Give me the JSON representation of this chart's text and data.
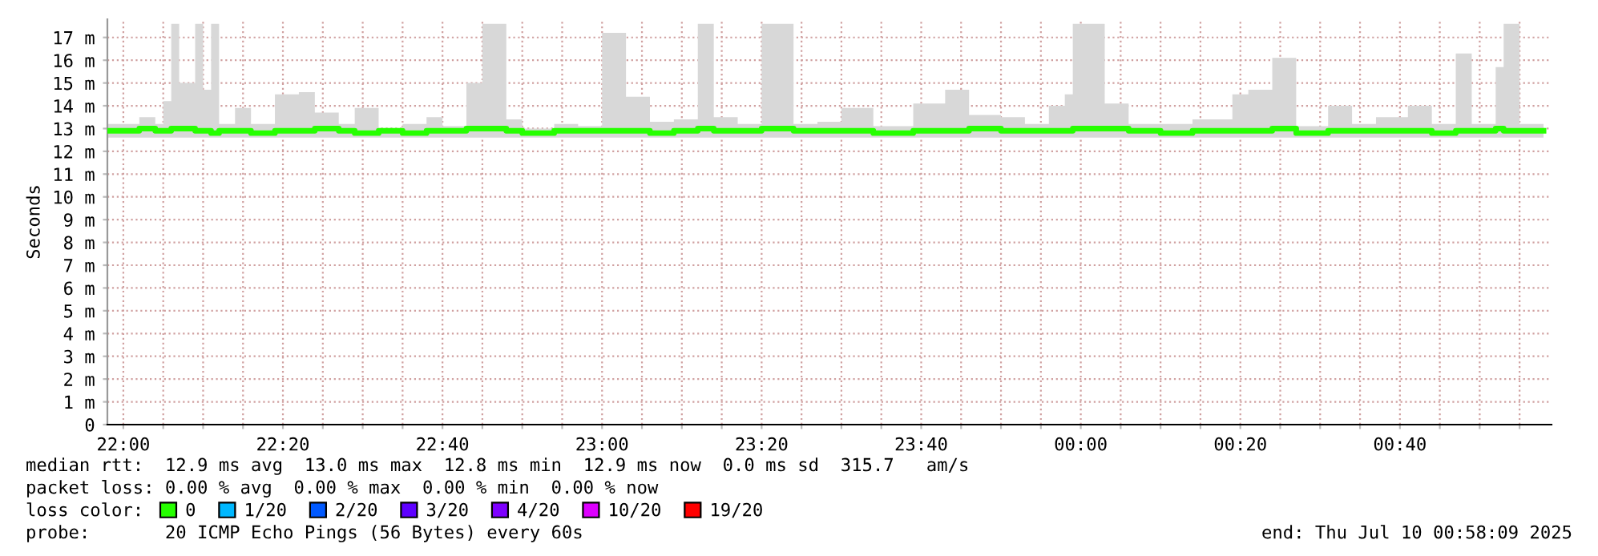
{
  "chart_data": {
    "type": "step",
    "ylabel": "Seconds",
    "x": [
      "2025-07-09T21:58",
      "2025-07-09T22:00",
      "2025-07-09T22:02",
      "2025-07-09T22:04",
      "2025-07-09T22:05",
      "2025-07-09T22:06",
      "2025-07-09T22:07",
      "2025-07-09T22:09",
      "2025-07-09T22:10",
      "2025-07-09T22:11",
      "2025-07-09T22:12",
      "2025-07-09T22:14",
      "2025-07-09T22:16",
      "2025-07-09T22:19",
      "2025-07-09T22:22",
      "2025-07-09T22:24",
      "2025-07-09T22:27",
      "2025-07-09T22:29",
      "2025-07-09T22:32",
      "2025-07-09T22:35",
      "2025-07-09T22:38",
      "2025-07-09T22:40",
      "2025-07-09T22:43",
      "2025-07-09T22:45",
      "2025-07-09T22:48",
      "2025-07-09T22:50",
      "2025-07-09T22:54",
      "2025-07-09T22:57",
      "2025-07-09T23:00",
      "2025-07-09T23:03",
      "2025-07-09T23:06",
      "2025-07-09T23:09",
      "2025-07-09T23:12",
      "2025-07-09T23:14",
      "2025-07-09T23:17",
      "2025-07-09T23:20",
      "2025-07-09T23:24",
      "2025-07-09T23:27",
      "2025-07-09T23:30",
      "2025-07-09T23:34",
      "2025-07-09T23:39",
      "2025-07-09T23:43",
      "2025-07-09T23:46",
      "2025-07-09T23:50",
      "2025-07-09T23:53",
      "2025-07-09T23:56",
      "2025-07-09T23:58",
      "2025-07-09T23:59",
      "2025-07-10T00:03",
      "2025-07-10T00:06",
      "2025-07-10T00:10",
      "2025-07-10T00:14",
      "2025-07-10T00:19",
      "2025-07-10T00:21",
      "2025-07-10T00:24",
      "2025-07-10T00:27",
      "2025-07-10T00:31",
      "2025-07-10T00:34",
      "2025-07-10T00:37",
      "2025-07-10T00:41",
      "2025-07-10T00:44",
      "2025-07-10T00:47",
      "2025-07-10T00:49",
      "2025-07-10T00:52",
      "2025-07-10T00:53",
      "2025-07-10T00:55",
      "2025-07-10T00:58"
    ],
    "series": [
      {
        "name": "0",
        "color": "#26ff00",
        "values": [
          12.9,
          12.9,
          13.0,
          12.9,
          12.9,
          13.0,
          13.0,
          12.9,
          12.9,
          12.8,
          12.9,
          12.9,
          12.8,
          12.9,
          12.9,
          13.0,
          12.9,
          12.8,
          12.9,
          12.8,
          12.9,
          12.9,
          13.0,
          13.0,
          12.9,
          12.8,
          12.9,
          12.9,
          12.9,
          12.9,
          12.8,
          12.9,
          13.0,
          12.9,
          12.9,
          13.0,
          12.9,
          12.9,
          12.9,
          12.8,
          12.9,
          12.9,
          13.0,
          12.9,
          12.9,
          12.9,
          12.9,
          13.0,
          13.0,
          12.9,
          12.8,
          12.9,
          12.9,
          12.9,
          13.0,
          12.8,
          12.9,
          12.9,
          12.9,
          12.9,
          12.8,
          12.9,
          12.9,
          13.0,
          12.9,
          12.9,
          12.9
        ],
        "lower": [
          12.6,
          12.6,
          12.6,
          12.6,
          12.6,
          12.6,
          12.6,
          12.6,
          12.6,
          12.6,
          12.6,
          12.6,
          12.6,
          12.6,
          12.6,
          12.6,
          12.6,
          12.6,
          12.6,
          12.6,
          12.6,
          12.6,
          12.6,
          12.6,
          12.6,
          12.6,
          12.6,
          12.6,
          12.6,
          12.6,
          12.6,
          12.6,
          12.6,
          12.6,
          12.6,
          12.6,
          12.6,
          12.6,
          12.6,
          12.6,
          12.6,
          12.6,
          12.6,
          12.6,
          12.6,
          12.6,
          12.6,
          12.6,
          12.6,
          12.6,
          12.6,
          12.6,
          12.6,
          12.6,
          12.6,
          12.6,
          12.6,
          12.6,
          12.6,
          12.6,
          12.6,
          12.6,
          12.6,
          12.6,
          12.6,
          12.6,
          12.6
        ],
        "upper": [
          13.2,
          13.2,
          13.5,
          13.2,
          14.2,
          17.6,
          15.0,
          17.6,
          14.7,
          17.6,
          13.2,
          13.9,
          13.2,
          14.5,
          14.6,
          13.7,
          13.2,
          13.9,
          13.0,
          13.2,
          13.5,
          13.1,
          15.0,
          17.6,
          13.4,
          13.0,
          13.2,
          13.1,
          17.2,
          14.4,
          13.3,
          13.4,
          17.6,
          13.5,
          13.2,
          17.6,
          13.2,
          13.3,
          13.9,
          13.1,
          14.1,
          14.7,
          13.6,
          13.5,
          13.2,
          14.0,
          14.5,
          17.6,
          14.1,
          13.2,
          13.2,
          13.4,
          14.5,
          14.7,
          16.1,
          13.1,
          14.0,
          13.2,
          13.5,
          14.0,
          13.2,
          16.3,
          13.2,
          15.7,
          17.6,
          13.2,
          13.2
        ]
      },
      {
        "name": "1/20",
        "color": "#00b8ff",
        "values": [
          null,
          null,
          null,
          null,
          null,
          null,
          null,
          null,
          null,
          null,
          null,
          null,
          null,
          null,
          null,
          null,
          null,
          null,
          null,
          null,
          null,
          null,
          null,
          null,
          null,
          null,
          null,
          null,
          null,
          null,
          null,
          null,
          null,
          null,
          null,
          null,
          null,
          null,
          null,
          null,
          null,
          null,
          null,
          null,
          null,
          null,
          null,
          null,
          null,
          null,
          null,
          null,
          null,
          null,
          null,
          null,
          null,
          null,
          null,
          null,
          null,
          null,
          null,
          null,
          null,
          null,
          null
        ]
      },
      {
        "name": "2/20",
        "color": "#0059ff",
        "values": [
          null,
          null,
          null,
          null,
          null,
          null,
          null,
          null,
          null,
          null,
          null,
          null,
          null,
          null,
          null,
          null,
          null,
          null,
          null,
          null,
          null,
          null,
          null,
          null,
          null,
          null,
          null,
          null,
          null,
          null,
          null,
          null,
          null,
          null,
          null,
          null,
          null,
          null,
          null,
          null,
          null,
          null,
          null,
          null,
          null,
          null,
          null,
          null,
          null,
          null,
          null,
          null,
          null,
          null,
          null,
          null,
          null,
          null,
          null,
          null,
          null,
          null,
          null,
          null,
          null,
          null,
          null
        ]
      },
      {
        "name": "3/20",
        "color": "#5e00ff",
        "values": [
          null,
          null,
          null,
          null,
          null,
          null,
          null,
          null,
          null,
          null,
          null,
          null,
          null,
          null,
          null,
          null,
          null,
          null,
          null,
          null,
          null,
          null,
          null,
          null,
          null,
          null,
          null,
          null,
          null,
          null,
          null,
          null,
          null,
          null,
          null,
          null,
          null,
          null,
          null,
          null,
          null,
          null,
          null,
          null,
          null,
          null,
          null,
          null,
          null,
          null,
          null,
          null,
          null,
          null,
          null,
          null,
          null,
          null,
          null,
          null,
          null,
          null,
          null,
          null,
          null,
          null,
          null
        ]
      },
      {
        "name": "4/20",
        "color": "#7e00ff",
        "values": [
          null,
          null,
          null,
          null,
          null,
          null,
          null,
          null,
          null,
          null,
          null,
          null,
          null,
          null,
          null,
          null,
          null,
          null,
          null,
          null,
          null,
          null,
          null,
          null,
          null,
          null,
          null,
          null,
          null,
          null,
          null,
          null,
          null,
          null,
          null,
          null,
          null,
          null,
          null,
          null,
          null,
          null,
          null,
          null,
          null,
          null,
          null,
          null,
          null,
          null,
          null,
          null,
          null,
          null,
          null,
          null,
          null,
          null,
          null,
          null,
          null,
          null,
          null,
          null,
          null,
          null,
          null
        ]
      },
      {
        "name": "10/20",
        "color": "#dd00ff",
        "values": [
          null,
          null,
          null,
          null,
          null,
          null,
          null,
          null,
          null,
          null,
          null,
          null,
          null,
          null,
          null,
          null,
          null,
          null,
          null,
          null,
          null,
          null,
          null,
          null,
          null,
          null,
          null,
          null,
          null,
          null,
          null,
          null,
          null,
          null,
          null,
          null,
          null,
          null,
          null,
          null,
          null,
          null,
          null,
          null,
          null,
          null,
          null,
          null,
          null,
          null,
          null,
          null,
          null,
          null,
          null,
          null,
          null,
          null,
          null,
          null,
          null,
          null,
          null,
          null,
          null,
          null,
          null
        ]
      },
      {
        "name": "19/20",
        "color": "#ff0000",
        "values": [
          null,
          null,
          null,
          null,
          null,
          null,
          null,
          null,
          null,
          null,
          null,
          null,
          null,
          null,
          null,
          null,
          null,
          null,
          null,
          null,
          null,
          null,
          null,
          null,
          null,
          null,
          null,
          null,
          null,
          null,
          null,
          null,
          null,
          null,
          null,
          null,
          null,
          null,
          null,
          null,
          null,
          null,
          null,
          null,
          null,
          null,
          null,
          null,
          null,
          null,
          null,
          null,
          null,
          null,
          null,
          null,
          null,
          null,
          null,
          null,
          null,
          null,
          null,
          null,
          null,
          null,
          null
        ]
      }
    ],
    "xlim": [
      "2025-07-09T21:58",
      "2025-07-10T00:59"
    ],
    "xticks": [
      {
        "value": "2025-07-09T22:00",
        "label": "22:00"
      },
      {
        "value": "2025-07-09T22:05",
        "label": null
      },
      {
        "value": "2025-07-09T22:10",
        "label": null
      },
      {
        "value": "2025-07-09T22:15",
        "label": null
      },
      {
        "value": "2025-07-09T22:20",
        "label": "22:20"
      },
      {
        "value": "2025-07-09T22:25",
        "label": null
      },
      {
        "value": "2025-07-09T22:30",
        "label": null
      },
      {
        "value": "2025-07-09T22:35",
        "label": null
      },
      {
        "value": "2025-07-09T22:40",
        "label": "22:40"
      },
      {
        "value": "2025-07-09T22:45",
        "label": null
      },
      {
        "value": "2025-07-09T22:50",
        "label": null
      },
      {
        "value": "2025-07-09T22:55",
        "label": null
      },
      {
        "value": "2025-07-09T23:00",
        "label": "23:00"
      },
      {
        "value": "2025-07-09T23:05",
        "label": null
      },
      {
        "value": "2025-07-09T23:10",
        "label": null
      },
      {
        "value": "2025-07-09T23:15",
        "label": null
      },
      {
        "value": "2025-07-09T23:20",
        "label": "23:20"
      },
      {
        "value": "2025-07-09T23:25",
        "label": null
      },
      {
        "value": "2025-07-09T23:30",
        "label": null
      },
      {
        "value": "2025-07-09T23:35",
        "label": null
      },
      {
        "value": "2025-07-09T23:40",
        "label": "23:40"
      },
      {
        "value": "2025-07-09T23:45",
        "label": null
      },
      {
        "value": "2025-07-09T23:50",
        "label": null
      },
      {
        "value": "2025-07-09T23:55",
        "label": null
      },
      {
        "value": "2025-07-10T00:00",
        "label": "00:00"
      },
      {
        "value": "2025-07-10T00:05",
        "label": null
      },
      {
        "value": "2025-07-10T00:10",
        "label": null
      },
      {
        "value": "2025-07-10T00:15",
        "label": null
      },
      {
        "value": "2025-07-10T00:20",
        "label": "00:20"
      },
      {
        "value": "2025-07-10T00:25",
        "label": null
      },
      {
        "value": "2025-07-10T00:30",
        "label": null
      },
      {
        "value": "2025-07-10T00:35",
        "label": null
      },
      {
        "value": "2025-07-10T00:40",
        "label": "00:40"
      },
      {
        "value": "2025-07-10T00:45",
        "label": null
      },
      {
        "value": "2025-07-10T00:50",
        "label": null
      },
      {
        "value": "2025-07-10T00:55",
        "label": null
      }
    ],
    "ylim": [
      0,
      17.8
    ],
    "yticks": [
      0,
      {
        "value": 1,
        "label": "1 m"
      },
      {
        "value": 2,
        "label": "2 m"
      },
      {
        "value": 3,
        "label": "3 m"
      },
      {
        "value": 4,
        "label": "4 m"
      },
      {
        "value": 5,
        "label": "5 m"
      },
      {
        "value": 6,
        "label": "6 m"
      },
      {
        "value": 7,
        "label": "7 m"
      },
      {
        "value": 8,
        "label": "8 m"
      },
      {
        "value": 9,
        "label": "9 m"
      },
      {
        "value": 10,
        "label": "10 m"
      },
      {
        "value": 11,
        "label": "11 m"
      },
      {
        "value": 12,
        "label": "12 m"
      },
      {
        "value": 13,
        "label": "13 m"
      },
      {
        "value": 14,
        "label": "14 m"
      },
      {
        "value": 15,
        "label": "15 m"
      },
      {
        "value": 16,
        "label": "16 m"
      },
      {
        "value": 17,
        "label": "17 m"
      }
    ],
    "grid": true,
    "legend": "bottom",
    "annotations": [
      "median rtt:  12.9 ms avg  13.0 ms max  12.8 ms min  12.9 ms now  0.0 ms sd  315.7   am/s",
      "packet loss: 0.00 % avg  0.00 % max  0.00 % min  0.00 % now",
      "loss color:",
      "probe:       20 ICMP Echo Pings (56 Bytes) every 60s",
      "end: Thu Jul 10 00:58:09 2025"
    ]
  }
}
